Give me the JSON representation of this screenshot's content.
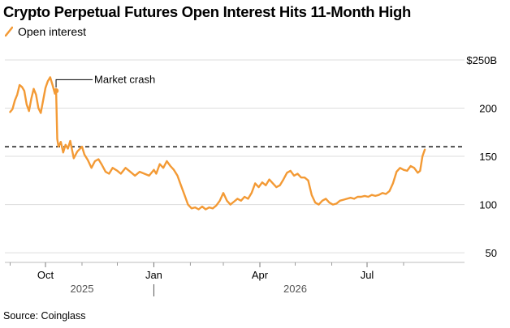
{
  "title": "Crypto Perpetual Futures Open Interest Hits 11-Month High",
  "source": "Source: Coinglass",
  "legend": {
    "label": "Open interest",
    "color": "#f39a35"
  },
  "chart_data": {
    "type": "line",
    "title": "Crypto Perpetual Futures Open Interest Hits 11-Month High",
    "xlabel": "",
    "ylabel": "",
    "unit_label": "$250B",
    "ylim": [
      40,
      250
    ],
    "y_ticks": [
      {
        "value": 250,
        "label": "$250B"
      },
      {
        "value": 200,
        "label": "200"
      },
      {
        "value": 150,
        "label": "150"
      },
      {
        "value": 100,
        "label": "100"
      },
      {
        "value": 50,
        "label": "50"
      }
    ],
    "x_ticks": [
      {
        "date": "2025-10-01",
        "label": "Oct"
      },
      {
        "date": "2026-01-01",
        "label": "Jan"
      },
      {
        "date": "2026-04-01",
        "label": "Apr"
      },
      {
        "date": "2026-07-01",
        "label": "Jul"
      }
    ],
    "year_labels": [
      {
        "date": "2025-11-01",
        "label": "2025"
      },
      {
        "date": "2026-05-01",
        "label": "2026"
      }
    ],
    "reference_line": {
      "value": 160,
      "style": "dashed"
    },
    "annotation": {
      "label": "Market crash",
      "date": "2025-10-10"
    },
    "grid": true,
    "series": [
      {
        "name": "Open interest",
        "color": "#f39a35",
        "points": [
          [
            "2025-09-01",
            196
          ],
          [
            "2025-09-03",
            199
          ],
          [
            "2025-09-05",
            208
          ],
          [
            "2025-09-07",
            214
          ],
          [
            "2025-09-09",
            224
          ],
          [
            "2025-09-11",
            222
          ],
          [
            "2025-09-13",
            218
          ],
          [
            "2025-09-15",
            204
          ],
          [
            "2025-09-17",
            197
          ],
          [
            "2025-09-19",
            210
          ],
          [
            "2025-09-21",
            220
          ],
          [
            "2025-09-23",
            214
          ],
          [
            "2025-09-25",
            200
          ],
          [
            "2025-09-27",
            195
          ],
          [
            "2025-09-29",
            208
          ],
          [
            "2025-10-01",
            221
          ],
          [
            "2025-10-03",
            228
          ],
          [
            "2025-10-05",
            232
          ],
          [
            "2025-10-07",
            224
          ],
          [
            "2025-10-09",
            215
          ],
          [
            "2025-10-10",
            218
          ],
          [
            "2025-10-11",
            168
          ],
          [
            "2025-10-12",
            160
          ],
          [
            "2025-10-14",
            165
          ],
          [
            "2025-10-16",
            154
          ],
          [
            "2025-10-18",
            162
          ],
          [
            "2025-10-20",
            158
          ],
          [
            "2025-10-22",
            166
          ],
          [
            "2025-10-25",
            148
          ],
          [
            "2025-10-28",
            155
          ],
          [
            "2025-11-01",
            160
          ],
          [
            "2025-11-03",
            152
          ],
          [
            "2025-11-06",
            146
          ],
          [
            "2025-11-09",
            138
          ],
          [
            "2025-11-12",
            145
          ],
          [
            "2025-11-15",
            147
          ],
          [
            "2025-11-18",
            141
          ],
          [
            "2025-11-21",
            134
          ],
          [
            "2025-11-24",
            132
          ],
          [
            "2025-11-27",
            138
          ],
          [
            "2025-12-01",
            135
          ],
          [
            "2025-12-04",
            132
          ],
          [
            "2025-12-08",
            138
          ],
          [
            "2025-12-12",
            134
          ],
          [
            "2025-12-16",
            130
          ],
          [
            "2025-12-20",
            134
          ],
          [
            "2025-12-24",
            132
          ],
          [
            "2025-12-28",
            130
          ],
          [
            "2026-01-01",
            136
          ],
          [
            "2026-01-03",
            132
          ],
          [
            "2026-01-06",
            142
          ],
          [
            "2026-01-09",
            138
          ],
          [
            "2026-01-12",
            145
          ],
          [
            "2026-01-15",
            140
          ],
          [
            "2026-01-18",
            136
          ],
          [
            "2026-01-21",
            130
          ],
          [
            "2026-01-24",
            120
          ],
          [
            "2026-01-27",
            110
          ],
          [
            "2026-01-30",
            100
          ],
          [
            "2026-02-02",
            96
          ],
          [
            "2026-02-05",
            97
          ],
          [
            "2026-02-08",
            95
          ],
          [
            "2026-02-11",
            98
          ],
          [
            "2026-02-14",
            95
          ],
          [
            "2026-02-17",
            97
          ],
          [
            "2026-02-20",
            96
          ],
          [
            "2026-02-23",
            99
          ],
          [
            "2026-02-26",
            104
          ],
          [
            "2026-03-01",
            112
          ],
          [
            "2026-03-04",
            104
          ],
          [
            "2026-03-07",
            100
          ],
          [
            "2026-03-10",
            103
          ],
          [
            "2026-03-13",
            106
          ],
          [
            "2026-03-16",
            104
          ],
          [
            "2026-03-19",
            108
          ],
          [
            "2026-03-22",
            106
          ],
          [
            "2026-03-25",
            112
          ],
          [
            "2026-03-28",
            122
          ],
          [
            "2026-03-31",
            118
          ],
          [
            "2026-04-03",
            123
          ],
          [
            "2026-04-06",
            120
          ],
          [
            "2026-04-09",
            126
          ],
          [
            "2026-04-12",
            122
          ],
          [
            "2026-04-15",
            118
          ],
          [
            "2026-04-18",
            120
          ],
          [
            "2026-04-21",
            126
          ],
          [
            "2026-04-24",
            133
          ],
          [
            "2026-04-27",
            135
          ],
          [
            "2026-04-30",
            130
          ],
          [
            "2026-05-03",
            132
          ],
          [
            "2026-05-06",
            128
          ],
          [
            "2026-05-09",
            128
          ],
          [
            "2026-05-12",
            125
          ],
          [
            "2026-05-15",
            110
          ],
          [
            "2026-05-18",
            102
          ],
          [
            "2026-05-21",
            100
          ],
          [
            "2026-05-24",
            104
          ],
          [
            "2026-05-27",
            106
          ],
          [
            "2026-05-30",
            102
          ],
          [
            "2026-06-02",
            100
          ],
          [
            "2026-06-05",
            101
          ],
          [
            "2026-06-08",
            104
          ],
          [
            "2026-06-11",
            105
          ],
          [
            "2026-06-14",
            106
          ],
          [
            "2026-06-17",
            107
          ],
          [
            "2026-06-20",
            106
          ],
          [
            "2026-06-23",
            108
          ],
          [
            "2026-06-26",
            108
          ],
          [
            "2026-06-29",
            109
          ],
          [
            "2026-07-02",
            108
          ],
          [
            "2026-07-05",
            110
          ],
          [
            "2026-07-08",
            109
          ],
          [
            "2026-07-11",
            110
          ],
          [
            "2026-07-14",
            112
          ],
          [
            "2026-07-17",
            111
          ],
          [
            "2026-07-20",
            114
          ],
          [
            "2026-07-23",
            122
          ],
          [
            "2026-07-26",
            134
          ],
          [
            "2026-07-29",
            138
          ],
          [
            "2026-08-01",
            136
          ],
          [
            "2026-08-04",
            135
          ],
          [
            "2026-08-07",
            140
          ],
          [
            "2026-08-10",
            138
          ],
          [
            "2026-08-13",
            133
          ],
          [
            "2026-08-15",
            135
          ],
          [
            "2026-08-17",
            150
          ],
          [
            "2026-08-19",
            157
          ]
        ]
      }
    ]
  }
}
